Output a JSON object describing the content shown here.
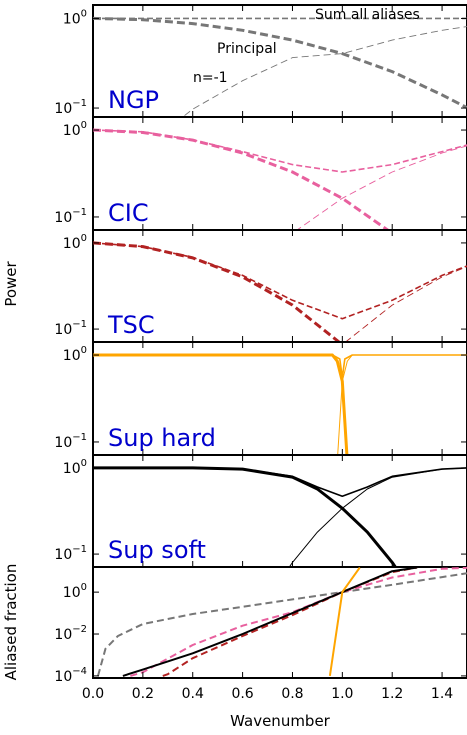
{
  "chart_data": {
    "type": "line",
    "xlabel": "Wavenumber",
    "xlim": [
      0.0,
      1.5
    ],
    "xticks": [
      "0.0",
      "0.2",
      "0.4",
      "0.6",
      "0.8",
      "1.0",
      "1.2",
      "1.4"
    ],
    "shared_ylabel": "Power",
    "panels": [
      {
        "id": "ngp",
        "label": "NGP",
        "label_color": "#0000cc",
        "line_color": "#777777",
        "ylim_log10": [
          -1.1,
          0.15
        ],
        "yticks": [
          "10^0",
          "10^-1"
        ],
        "annotations": [
          "Sum all aliases",
          "Principal",
          "n=-1"
        ],
        "series": [
          {
            "style": "sum",
            "x": [
              0.0,
              0.2,
              0.4,
              0.6,
              0.8,
              1.0,
              1.2,
              1.4,
              1.5
            ],
            "y": [
              1.0,
              1.0,
              1.0,
              1.0,
              1.0,
              1.0,
              1.0,
              1.0,
              1.0
            ]
          },
          {
            "style": "principal",
            "x": [
              0.0,
              0.2,
              0.4,
              0.6,
              0.8,
              1.0,
              1.2,
              1.4,
              1.5
            ],
            "y": [
              1.0,
              0.968,
              0.875,
              0.738,
              0.573,
              0.405,
              0.255,
              0.14,
              0.101
            ]
          },
          {
            "style": "alias",
            "x": [
              0.15,
              0.3,
              0.4,
              0.6,
              0.8,
              1.0,
              1.2,
              1.4,
              1.5
            ],
            "y": [
              0.003,
              0.059,
              0.097,
              0.202,
              0.366,
              0.405,
              0.573,
              0.738,
              0.811
            ]
          }
        ]
      },
      {
        "id": "cic",
        "label": "CIC",
        "label_color": "#0000cc",
        "line_color": "#e8609e",
        "ylim_log10": [
          -1.15,
          0.15
        ],
        "yticks": [
          "10^0",
          "10^-1"
        ],
        "series": [
          {
            "style": "sum",
            "x": [
              0.0,
              0.2,
              0.4,
              0.6,
              0.8,
              1.0,
              1.2,
              1.4,
              1.5
            ],
            "y": [
              1.0,
              0.954,
              0.77,
              0.565,
              0.4,
              0.329,
              0.4,
              0.565,
              0.672
            ]
          },
          {
            "style": "principal",
            "x": [
              0.0,
              0.2,
              0.4,
              0.6,
              0.8,
              1.0,
              1.2,
              1.26
            ],
            "y": [
              1.0,
              0.937,
              0.766,
              0.545,
              0.329,
              0.164,
              0.065,
              0.045
            ]
          },
          {
            "style": "alias",
            "x": [
              0.75,
              0.8,
              1.0,
              1.2,
              1.4,
              1.5
            ],
            "y": [
              0.045,
              0.065,
              0.164,
              0.329,
              0.545,
              0.657
            ]
          }
        ]
      },
      {
        "id": "tsc",
        "label": "TSC",
        "label_color": "#0000cc",
        "line_color": "#b22222",
        "ylim_log10": [
          -1.15,
          0.15
        ],
        "yticks": [
          "10^0",
          "10^-1"
        ],
        "series": [
          {
            "style": "sum",
            "x": [
              0.0,
              0.2,
              0.4,
              0.6,
              0.8,
              1.0,
              1.2,
              1.4,
              1.5
            ],
            "y": [
              1.0,
              0.907,
              0.68,
              0.42,
              0.216,
              0.132,
              0.216,
              0.42,
              0.54
            ]
          },
          {
            "style": "principal",
            "x": [
              0.0,
              0.2,
              0.4,
              0.6,
              0.8,
              1.0,
              1.06
            ],
            "y": [
              1.0,
              0.906,
              0.67,
              0.403,
              0.19,
              0.066,
              0.05
            ]
          },
          {
            "style": "alias",
            "x": [
              0.94,
              1.0,
              1.2,
              1.4,
              1.5
            ],
            "y": [
              0.05,
              0.066,
              0.19,
              0.403,
              0.531
            ]
          }
        ]
      },
      {
        "id": "sup-hard",
        "label": "Sup hard",
        "label_color": "#0000cc",
        "line_color": "#ffa500",
        "ylim_log10": [
          -1.15,
          0.15
        ],
        "yticks": [
          "10^0",
          "10^-1"
        ],
        "series": [
          {
            "style": "sum",
            "x": [
              0.0,
              0.96,
              0.99,
              1.0,
              1.01,
              1.04,
              1.5
            ],
            "y": [
              1.0,
              1.0,
              0.9,
              0.55,
              0.9,
              1.0,
              1.0
            ]
          },
          {
            "style": "principal",
            "x": [
              0.0,
              0.96,
              0.98,
              1.0,
              1.02
            ],
            "y": [
              1.0,
              1.0,
              0.85,
              0.5,
              0.06
            ]
          },
          {
            "style": "alias",
            "x": [
              0.98,
              1.0,
              1.02,
              1.04,
              1.5
            ],
            "y": [
              0.06,
              0.5,
              0.85,
              1.0,
              1.0
            ]
          }
        ]
      },
      {
        "id": "sup-soft",
        "label": "Sup soft",
        "label_color": "#0000cc",
        "line_color": "#000000",
        "ylim_log10": [
          -1.15,
          0.15
        ],
        "yticks": [
          "10^0",
          "10^-1"
        ],
        "series": [
          {
            "style": "sum",
            "x": [
              0.0,
              0.4,
              0.6,
              0.8,
              0.9,
              1.0,
              1.1,
              1.2,
              1.4,
              1.5
            ],
            "y": [
              1.0,
              1.0,
              0.97,
              0.8,
              0.6,
              0.47,
              0.6,
              0.8,
              0.97,
              1.0
            ]
          },
          {
            "style": "principal",
            "x": [
              0.0,
              0.4,
              0.6,
              0.8,
              0.9,
              1.0,
              1.1,
              1.2,
              1.3
            ],
            "y": [
              1.0,
              1.0,
              0.97,
              0.78,
              0.57,
              0.34,
              0.18,
              0.08,
              0.03
            ]
          },
          {
            "style": "alias",
            "x": [
              0.7,
              0.8,
              0.9,
              1.0,
              1.1,
              1.2,
              1.4,
              1.5
            ],
            "y": [
              0.03,
              0.08,
              0.18,
              0.34,
              0.57,
              0.78,
              0.97,
              1.0
            ]
          }
        ]
      }
    ],
    "fraction_panel": {
      "ylabel": "Aliased fraction",
      "ylim_log10": [
        -4.1,
        1.2
      ],
      "yticks": [
        "10^0",
        "10^-2",
        "10^-4"
      ],
      "series": [
        {
          "scheme": "NGP",
          "color": "#777777",
          "style": "dashed",
          "x": [
            0.02,
            0.05,
            0.1,
            0.2,
            0.4,
            0.6,
            0.8,
            1.0,
            1.2,
            1.4,
            1.5
          ],
          "y": [
            0.0001,
            0.002,
            0.008,
            0.03,
            0.09,
            0.2,
            0.45,
            1.0,
            2.25,
            5.2,
            8.0
          ]
        },
        {
          "scheme": "CIC",
          "color": "#e8609e",
          "style": "dashed",
          "x": [
            0.15,
            0.2,
            0.4,
            0.6,
            0.8,
            1.0,
            1.2,
            1.4,
            1.5
          ],
          "y": [
            0.0001,
            0.00015,
            0.003,
            0.025,
            0.11,
            1.0,
            5.0,
            13.0,
            14.5
          ]
        },
        {
          "scheme": "TSC",
          "color": "#b22222",
          "style": "dashed",
          "x": [
            0.28,
            0.3,
            0.4,
            0.6,
            0.8,
            1.0,
            1.2,
            1.3
          ],
          "y": [
            0.0001,
            0.00012,
            0.0007,
            0.008,
            0.08,
            1.0,
            9.0,
            15.0
          ]
        },
        {
          "scheme": "Sup soft",
          "color": "#000000",
          "style": "solid",
          "x": [
            0.12,
            0.2,
            0.4,
            0.6,
            0.8,
            1.0,
            1.2,
            1.3
          ],
          "y": [
            0.0001,
            0.0002,
            0.0012,
            0.01,
            0.1,
            1.0,
            10.0,
            15.0
          ]
        },
        {
          "scheme": "Sup hard",
          "color": "#ffa500",
          "style": "solid",
          "x": [
            0.95,
            1.0,
            1.07
          ],
          "y": [
            0.0001,
            1.0,
            15.0
          ]
        }
      ]
    }
  }
}
